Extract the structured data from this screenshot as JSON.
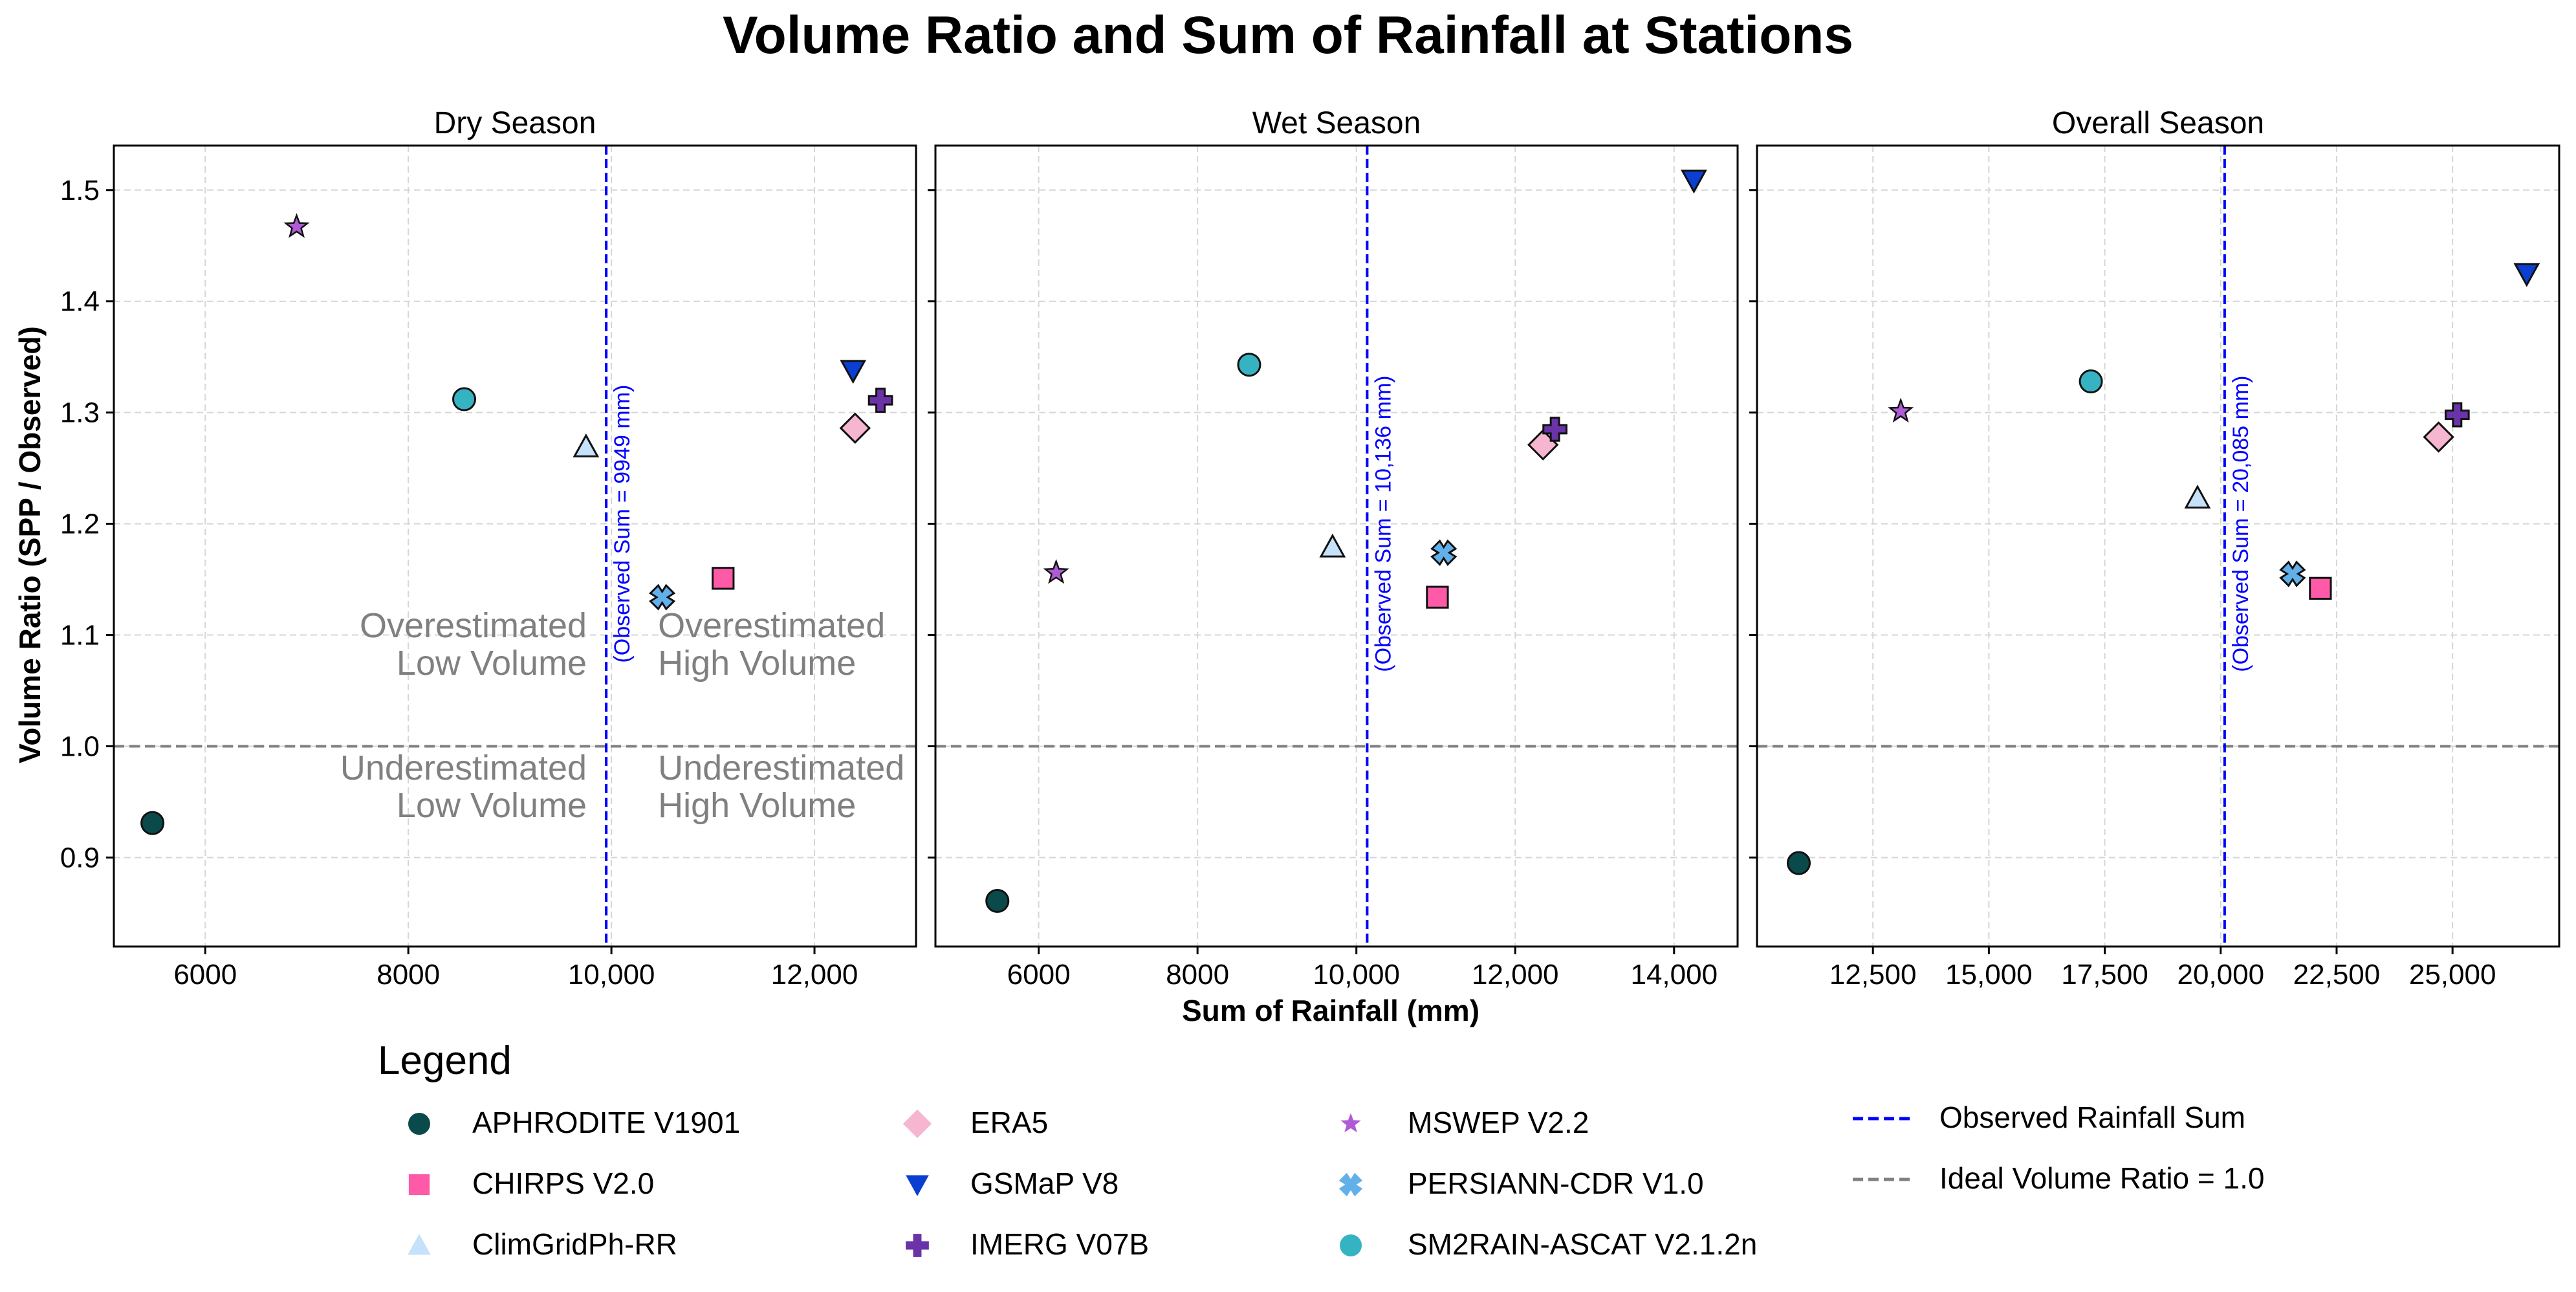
{
  "chart_data": {
    "type": "scatter",
    "title": "Volume Ratio and Sum of Rainfall at Stations",
    "ylabel": "Volume Ratio (SPP / Observed)",
    "xlabel": "Sum of Rainfall (mm)",
    "ylim": [
      0.82,
      1.54
    ],
    "yticks": [
      0.9,
      1.0,
      1.1,
      1.2,
      1.3,
      1.4,
      1.5
    ],
    "ytick_labels": [
      "0.9",
      "1.0",
      "1.1",
      "1.2",
      "1.3",
      "1.4",
      "1.5"
    ],
    "grid": true,
    "reference_line_y": 1.0,
    "panels": [
      {
        "title": "Dry Season",
        "xlim": [
          5100,
          13000
        ],
        "xticks": [
          6000,
          8000,
          10000,
          12000
        ],
        "xtick_labels": [
          "6000",
          "8000",
          "10,000",
          "12,000"
        ],
        "observed_sum": 9949,
        "observed_label": "(Observed Sum = 9949 mm)",
        "quadrant_labels": [
          {
            "lines": [
              "Overestimated",
              "Low Volume"
            ],
            "side": "left",
            "y": 1.098
          },
          {
            "lines": [
              "Overestimated",
              "High Volume"
            ],
            "side": "right",
            "y": 1.098
          },
          {
            "lines": [
              "Underestimated",
              "Low Volume"
            ],
            "side": "left",
            "y": 0.97
          },
          {
            "lines": [
              "Underestimated",
              "High Volume"
            ],
            "side": "right",
            "y": 0.97
          }
        ],
        "points": [
          {
            "product": "APHRODITE V1901",
            "x": 5480,
            "y": 0.931
          },
          {
            "product": "CHIRPS V2.0",
            "x": 11100,
            "y": 1.151
          },
          {
            "product": "ClimGridPh-RR",
            "x": 9750,
            "y": 1.269
          },
          {
            "product": "ERA5",
            "x": 12400,
            "y": 1.286
          },
          {
            "product": "GSMaP V8",
            "x": 12380,
            "y": 1.338
          },
          {
            "product": "IMERG V07B",
            "x": 12650,
            "y": 1.311
          },
          {
            "product": "MSWEP V2.2",
            "x": 6900,
            "y": 1.467
          },
          {
            "product": "PERSIANN-CDR V1.0",
            "x": 10500,
            "y": 1.134
          },
          {
            "product": "SM2RAIN-ASCAT V2.1.2n",
            "x": 8550,
            "y": 1.312
          }
        ]
      },
      {
        "title": "Wet Season",
        "xlim": [
          4700,
          14800
        ],
        "xticks": [
          6000,
          8000,
          10000,
          12000,
          14000
        ],
        "xtick_labels": [
          "6000",
          "8000",
          "10,000",
          "12,000",
          "14,000"
        ],
        "observed_sum": 10136,
        "observed_label": "(Observed Sum = 10,136 mm)",
        "quadrant_labels": [],
        "points": [
          {
            "product": "APHRODITE V1901",
            "x": 5480,
            "y": 0.861
          },
          {
            "product": "CHIRPS V2.0",
            "x": 11020,
            "y": 1.134
          },
          {
            "product": "ClimGridPh-RR",
            "x": 9700,
            "y": 1.179
          },
          {
            "product": "ERA5",
            "x": 12350,
            "y": 1.271
          },
          {
            "product": "GSMaP V8",
            "x": 14250,
            "y": 1.509
          },
          {
            "product": "IMERG V07B",
            "x": 12500,
            "y": 1.285
          },
          {
            "product": "MSWEP V2.2",
            "x": 6220,
            "y": 1.156
          },
          {
            "product": "PERSIANN-CDR V1.0",
            "x": 11100,
            "y": 1.174
          },
          {
            "product": "SM2RAIN-ASCAT V2.1.2n",
            "x": 8650,
            "y": 1.343
          }
        ]
      },
      {
        "title": "Overall Season",
        "xlim": [
          10000,
          27300
        ],
        "xticks": [
          12500,
          15000,
          17500,
          20000,
          22500,
          25000
        ],
        "xtick_labels": [
          "12,500",
          "15,000",
          "17,500",
          "20,000",
          "22,500",
          "25,000"
        ],
        "observed_sum": 20085,
        "observed_label": "(Observed Sum = 20,085 mm)",
        "quadrant_labels": [],
        "points": [
          {
            "product": "APHRODITE V1901",
            "x": 10900,
            "y": 0.895
          },
          {
            "product": "CHIRPS V2.0",
            "x": 22150,
            "y": 1.142
          },
          {
            "product": "ClimGridPh-RR",
            "x": 19500,
            "y": 1.223
          },
          {
            "product": "ERA5",
            "x": 24700,
            "y": 1.278
          },
          {
            "product": "GSMaP V8",
            "x": 26600,
            "y": 1.425
          },
          {
            "product": "IMERG V07B",
            "x": 25100,
            "y": 1.298
          },
          {
            "product": "MSWEP V2.2",
            "x": 13100,
            "y": 1.301
          },
          {
            "product": "PERSIANN-CDR V1.0",
            "x": 21550,
            "y": 1.155
          },
          {
            "product": "SM2RAIN-ASCAT V2.1.2n",
            "x": 17200,
            "y": 1.328
          }
        ]
      }
    ],
    "legend": {
      "title": "Legend",
      "placement": "bottom",
      "entries": [
        {
          "label": "APHRODITE V1901",
          "marker": "circle",
          "color": "#0b4a4a"
        },
        {
          "label": "CHIRPS V2.0",
          "marker": "square",
          "color": "#ff5aa8"
        },
        {
          "label": "ClimGridPh-RR",
          "marker": "triangle-up",
          "color": "#c6e2fa"
        },
        {
          "label": "ERA5",
          "marker": "diamond",
          "color": "#f7b6d0"
        },
        {
          "label": "GSMaP V8",
          "marker": "triangle-down",
          "color": "#0a3fd1"
        },
        {
          "label": "IMERG V07B",
          "marker": "plus",
          "color": "#6a33a8"
        },
        {
          "label": "MSWEP V2.2",
          "marker": "star",
          "color": "#b05ad6"
        },
        {
          "label": "PERSIANN-CDR V1.0",
          "marker": "x",
          "color": "#62b0ea"
        },
        {
          "label": "SM2RAIN-ASCAT V2.1.2n",
          "marker": "circle",
          "color": "#36b3c2"
        },
        {
          "label": "Observed Rainfall Sum",
          "marker": "line-dashed",
          "color": "#0000ff"
        },
        {
          "label": "Ideal Volume Ratio = 1.0",
          "marker": "line-dashed",
          "color": "#808080"
        }
      ]
    }
  }
}
